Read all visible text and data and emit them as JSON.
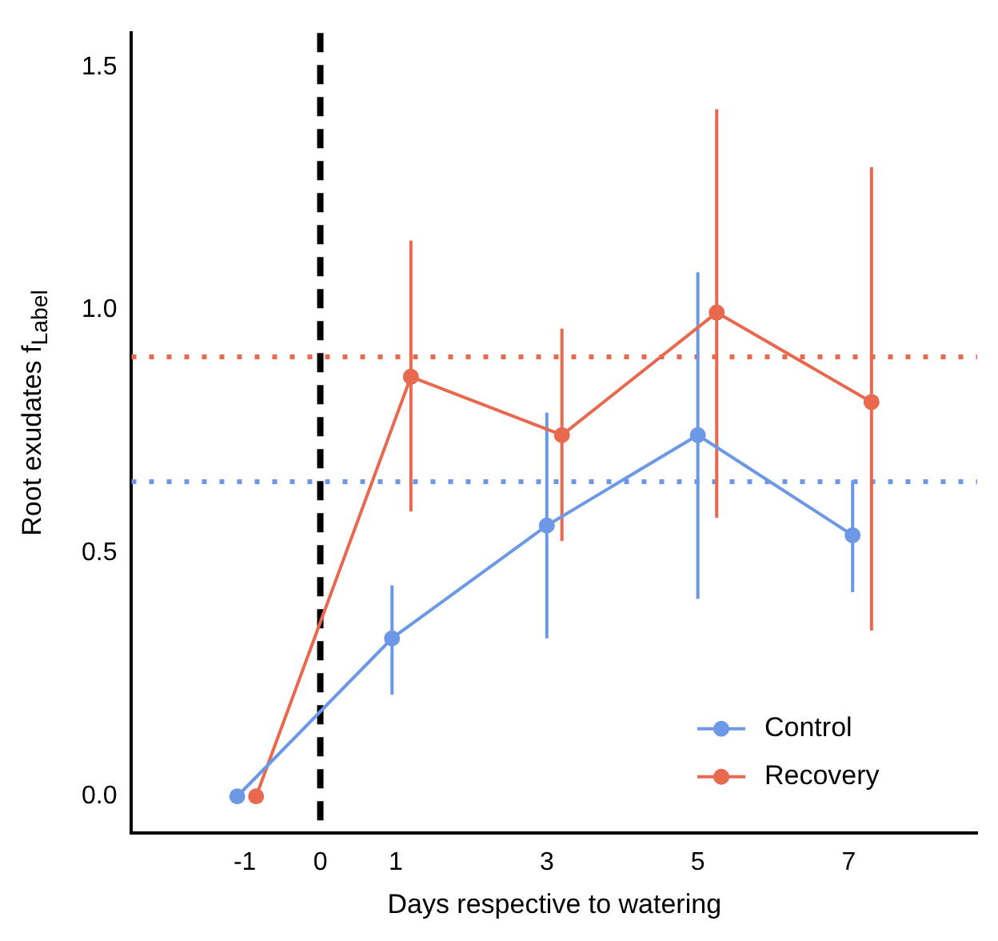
{
  "chart_data": {
    "type": "line",
    "xlabel": "Days respective to watering",
    "ylabel": "Root exudates f$_{Label}$",
    "xlim": [
      -2.5,
      8.7
    ],
    "xticks": [
      -1,
      0,
      1,
      3,
      5,
      7
    ],
    "ylim": [
      -0.075,
      1.57
    ],
    "yticks": [
      {
        "value": 0,
        "label": "0.0"
      },
      0.5,
      {
        "value": 1,
        "label": "1.0"
      },
      1.5
    ],
    "grid": false,
    "legend": "bottom right",
    "marker": "circle",
    "line_style": "solid",
    "series": [
      {
        "name": "Control",
        "color": "#6d98e6",
        "x": [
          -1.1,
          0.95,
          3.0,
          5.0,
          7.05
        ],
        "values": [
          0,
          0.325,
          0.557,
          0.743,
          0.537
        ],
        "errors": [
          null,
          [
            0.209,
            0.434
          ],
          [
            0.325,
            0.789
          ],
          [
            0.406,
            1.078
          ],
          [
            0.42,
            0.65
          ]
        ]
      },
      {
        "name": "Recovery",
        "color": "#e8694e",
        "x": [
          -0.85,
          1.2,
          3.2,
          5.25,
          7.3
        ],
        "values": [
          0,
          0.863,
          0.743,
          0.995,
          0.811
        ],
        "errors": [
          null,
          [
            0.586,
            1.143
          ],
          [
            0.525,
            0.962
          ],
          [
            0.573,
            1.413
          ],
          [
            0.341,
            1.294
          ]
        ]
      }
    ],
    "ref_lines": [
      {
        "axis": "x",
        "value": 0,
        "color": "#000000",
        "line_style": "dashed"
      },
      {
        "axis": "y",
        "value": 0.904,
        "color": "#e8694e",
        "line_style": "dotted"
      },
      {
        "axis": "y",
        "value": 0.647,
        "color": "#6d98e6",
        "line_style": "dotted"
      }
    ]
  }
}
